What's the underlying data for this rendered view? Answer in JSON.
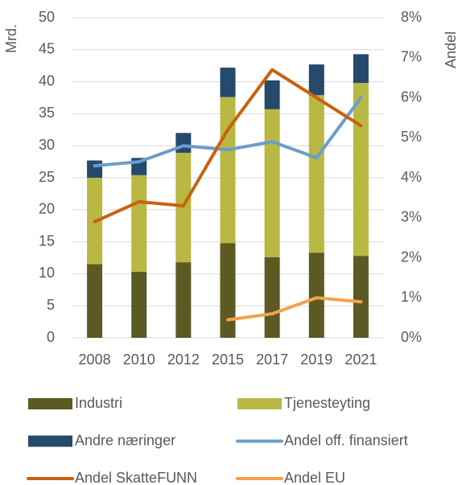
{
  "chart_data": {
    "type": "bar",
    "categories": [
      "2008",
      "2010",
      "2012",
      "2015",
      "2017",
      "2019",
      "2021"
    ],
    "y_label": "Mrd.",
    "y2_label": "Andel",
    "ylim": [
      0,
      50
    ],
    "yticks": [
      0,
      5,
      10,
      15,
      20,
      25,
      30,
      35,
      40,
      45,
      50
    ],
    "y2lim": [
      0,
      8
    ],
    "y2ticks": [
      {
        "value": 0,
        "label": "0%"
      },
      {
        "value": 1,
        "label": "1%"
      },
      {
        "value": 2,
        "label": "2%"
      },
      {
        "value": 3,
        "label": "3%"
      },
      {
        "value": 4,
        "label": "4%"
      },
      {
        "value": 5,
        "label": "5%"
      },
      {
        "value": 6,
        "label": "6%"
      },
      {
        "value": 7,
        "label": "7%"
      },
      {
        "value": 8,
        "label": "8%"
      }
    ],
    "grid": true,
    "stacked": true,
    "legend": "bottom",
    "series": [
      {
        "name": "Industri",
        "type": "bar",
        "color": "#5b5a23",
        "values": [
          11.5,
          10.3,
          11.8,
          14.8,
          12.6,
          13.3,
          12.8
        ]
      },
      {
        "name": "Tjenesteyting",
        "type": "bar",
        "color": "#b8b842",
        "values": [
          13.5,
          15.1,
          17.1,
          22.8,
          23.1,
          24.6,
          27.0
        ]
      },
      {
        "name": "Andre næringer",
        "type": "bar",
        "color": "#264a6b",
        "values": [
          2.7,
          2.7,
          3.1,
          4.6,
          4.5,
          4.8,
          4.5
        ]
      },
      {
        "name": "Andel off. finansiert",
        "type": "line",
        "axis": "y2",
        "color": "#6a9ecb",
        "values": [
          4.3,
          4.4,
          4.8,
          4.7,
          4.9,
          4.5,
          6.0
        ]
      },
      {
        "name": "Andel SkatteFUNN",
        "type": "line",
        "axis": "y2",
        "color": "#c8620e",
        "values": [
          2.9,
          3.4,
          3.3,
          5.2,
          6.7,
          6.0,
          5.3
        ]
      },
      {
        "name": "Andel EU",
        "type": "line",
        "axis": "y2",
        "color": "#f5a24a",
        "values": [
          null,
          null,
          null,
          0.45,
          0.6,
          1.0,
          0.9
        ]
      }
    ]
  }
}
